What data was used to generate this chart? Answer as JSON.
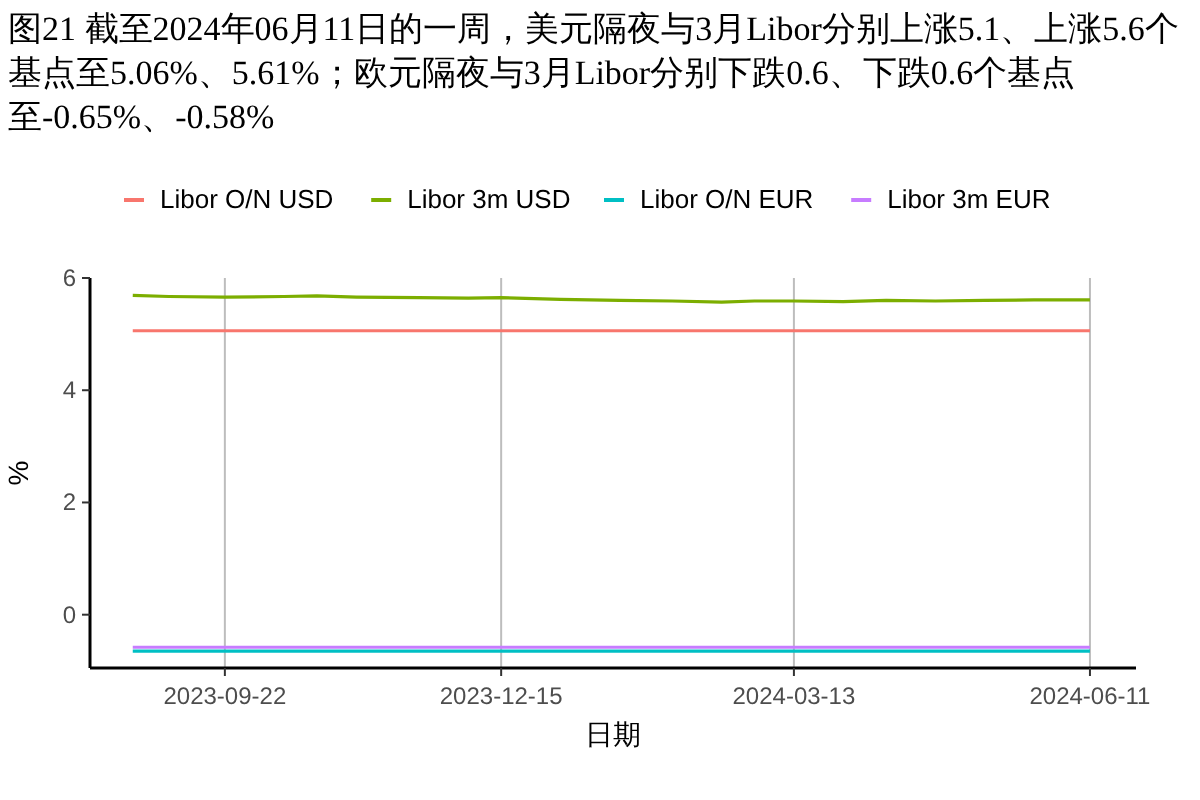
{
  "chart_data": {
    "type": "line",
    "title": "图21 截至2024年06月11日的一周，美元隔夜与3月Libor分别上涨5.1、上涨5.6个基点至5.06%、5.61%；欧元隔夜与3月Libor分别下跌0.6、下跌0.6个基点至-0.65%、-0.58%",
    "xlabel": "日期",
    "ylabel": "%",
    "legend": "top",
    "grid": "x",
    "line_style": "solid",
    "xlim": [
      "2023-08-12",
      "2024-06-25"
    ],
    "ylim": [
      -0.95,
      6
    ],
    "xticks": [
      "2023-09-22",
      "2023-12-15",
      "2024-03-13",
      "2024-06-11"
    ],
    "yticks": [
      0,
      2,
      4,
      6
    ],
    "series": [
      {
        "name": "Libor O/N USD",
        "color": "#f8766d",
        "x": [
          "2023-08-25",
          "2023-12-15",
          "2024-03-13",
          "2024-06-11"
        ],
        "values": [
          5.06,
          5.06,
          5.06,
          5.06
        ]
      },
      {
        "name": "Libor 3m USD",
        "color": "#7cae00",
        "x": [
          "2023-08-25",
          "2023-09-05",
          "2023-09-22",
          "2023-10-10",
          "2023-10-20",
          "2023-11-01",
          "2023-11-20",
          "2023-12-05",
          "2023-12-15",
          "2024-01-02",
          "2024-01-20",
          "2024-02-05",
          "2024-02-20",
          "2024-03-01",
          "2024-03-13",
          "2024-03-28",
          "2024-04-10",
          "2024-04-25",
          "2024-05-10",
          "2024-05-25",
          "2024-06-11"
        ],
        "values": [
          5.69,
          5.67,
          5.66,
          5.67,
          5.68,
          5.66,
          5.65,
          5.64,
          5.65,
          5.62,
          5.6,
          5.59,
          5.57,
          5.59,
          5.59,
          5.58,
          5.6,
          5.59,
          5.6,
          5.61,
          5.61
        ]
      },
      {
        "name": "Libor O/N EUR",
        "color": "#00bfc4",
        "x": [
          "2023-08-25",
          "2023-12-15",
          "2024-03-13",
          "2024-06-11"
        ],
        "values": [
          -0.65,
          -0.65,
          -0.65,
          -0.65
        ]
      },
      {
        "name": "Libor 3m EUR",
        "color": "#c77cff",
        "x": [
          "2023-08-25",
          "2023-12-15",
          "2024-03-13",
          "2024-06-11"
        ],
        "values": [
          -0.58,
          -0.58,
          -0.58,
          -0.58
        ]
      }
    ]
  }
}
